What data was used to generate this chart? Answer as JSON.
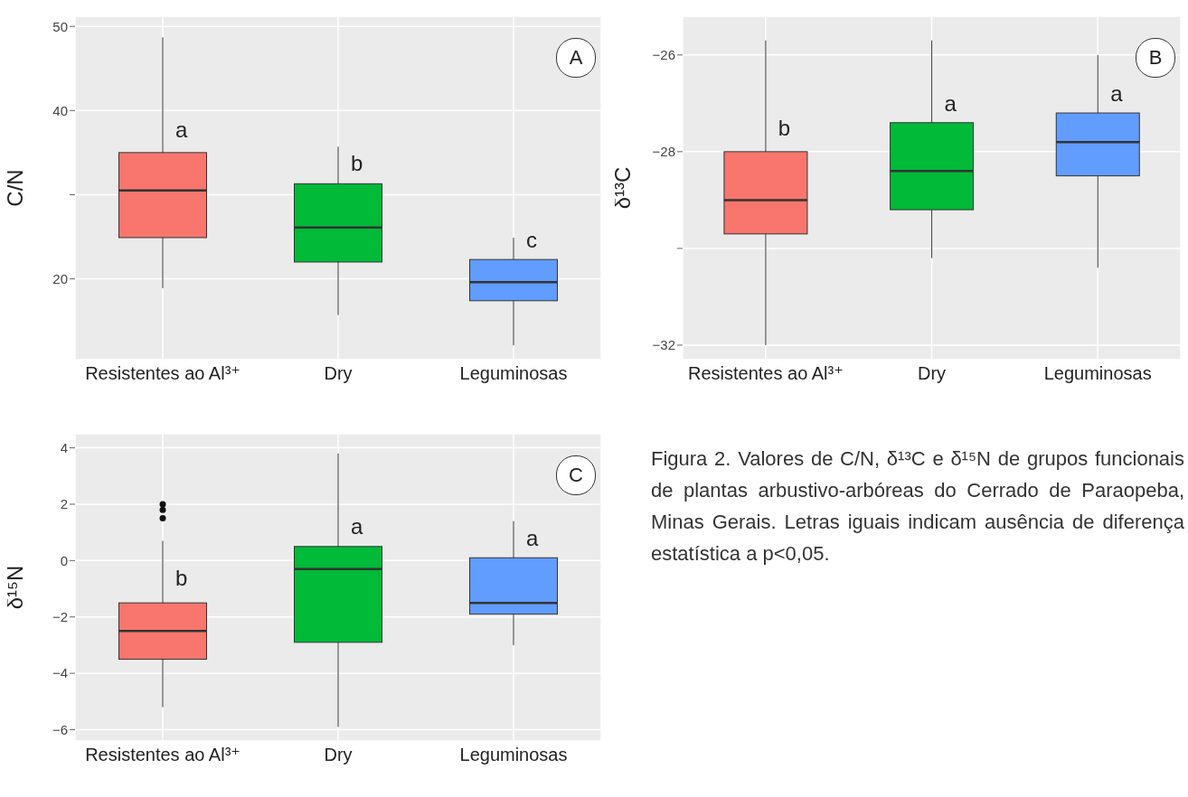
{
  "chart_data": [
    {
      "type": "box",
      "categories": [
        "Resistentes ao Al³⁺",
        "Dry",
        "Leguminosas"
      ],
      "ylabel": "C/N",
      "colors": [
        "#f8766d",
        "#00ba38",
        "#619cff"
      ],
      "ylim": [
        10.4,
        51.2
      ],
      "yticks": [
        20,
        {
          "value": 30,
          "label": null
        },
        40,
        50
      ],
      "grid": true,
      "boxes": [
        {
          "low": 18.9,
          "q1": 24.9,
          "median": 30.5,
          "q3": 35.0,
          "high": 48.7
        },
        {
          "low": 15.7,
          "q1": 22.0,
          "median": 26.1,
          "q3": 31.3,
          "high": 35.7
        },
        {
          "low": 12.1,
          "q1": 17.4,
          "median": 19.6,
          "q3": 22.3,
          "high": 24.9
        }
      ],
      "annotations": [
        "A",
        {
          "text": "a",
          "x": "Resistentes ao Al³⁺",
          "y": 37.7
        },
        {
          "text": "b",
          "x": "Dry",
          "y": 33.8
        },
        {
          "text": "c",
          "x": "Leguminosas",
          "y": 24.6
        }
      ]
    },
    {
      "type": "box",
      "categories": [
        "Resistentes ao Al³⁺",
        "Dry",
        "Leguminosas"
      ],
      "ylabel": "δ¹³C",
      "colors": [
        "#f8766d",
        "#00ba38",
        "#619cff"
      ],
      "ylim": [
        -32.3,
        -25.2
      ],
      "yticks": [
        -32,
        {
          "value": -30,
          "label": null
        },
        -28,
        -26
      ],
      "grid": true,
      "boxes": [
        {
          "low": -32.0,
          "q1": -29.7,
          "median": -29.0,
          "q3": -28.0,
          "high": -25.7
        },
        {
          "low": -30.2,
          "q1": -29.2,
          "median": -28.4,
          "q3": -27.4,
          "high": -25.7
        },
        {
          "low": -30.4,
          "q1": -28.5,
          "median": -27.8,
          "q3": -27.2,
          "high": -26.0
        }
      ],
      "annotations": [
        "B",
        {
          "text": "b",
          "x": "Resistentes ao Al³⁺",
          "y": -27.5
        },
        {
          "text": "a",
          "x": "Dry",
          "y": -27.0
        },
        {
          "text": "a",
          "x": "Leguminosas",
          "y": -26.8
        }
      ]
    },
    {
      "type": "box",
      "categories": [
        "Resistentes ao Al³⁺",
        "Dry",
        "Leguminosas"
      ],
      "ylabel": "δ¹⁵N",
      "colors": [
        "#f8766d",
        "#00ba38",
        "#619cff"
      ],
      "ylim": [
        -6.4,
        4.5
      ],
      "yticks": [
        -6,
        -4,
        -2,
        0,
        2,
        4
      ],
      "grid": true,
      "boxes": [
        {
          "low": -5.2,
          "q1": -3.5,
          "median": -2.5,
          "q3": -1.5,
          "high": 0.7,
          "outliers": [
            1.5,
            1.8,
            2.0
          ]
        },
        {
          "low": -5.9,
          "q1": -2.9,
          "median": -0.3,
          "q3": 0.5,
          "high": 3.8
        },
        {
          "low": -3.0,
          "q1": -1.9,
          "median": -1.5,
          "q3": 0.1,
          "high": 1.4
        }
      ],
      "annotations": [
        "C",
        {
          "text": "b",
          "x": "Resistentes ao Al³⁺",
          "y": -0.6
        },
        {
          "text": "a",
          "x": "Dry",
          "y": 1.2
        },
        {
          "text": "a",
          "x": "Leguminosas",
          "y": 0.8
        }
      ]
    },
    {
      "type": "other",
      "annotations": [
        "Figura 2. Valores de C/N, δ¹³C e δ¹⁵N de grupos funcionais de plantas arbustivo-arbóreas do Cerrado de Paraopeba, Minas Gerais. Letras iguais indicam ausência de diferença estatística a p<0,05."
      ]
    }
  ]
}
